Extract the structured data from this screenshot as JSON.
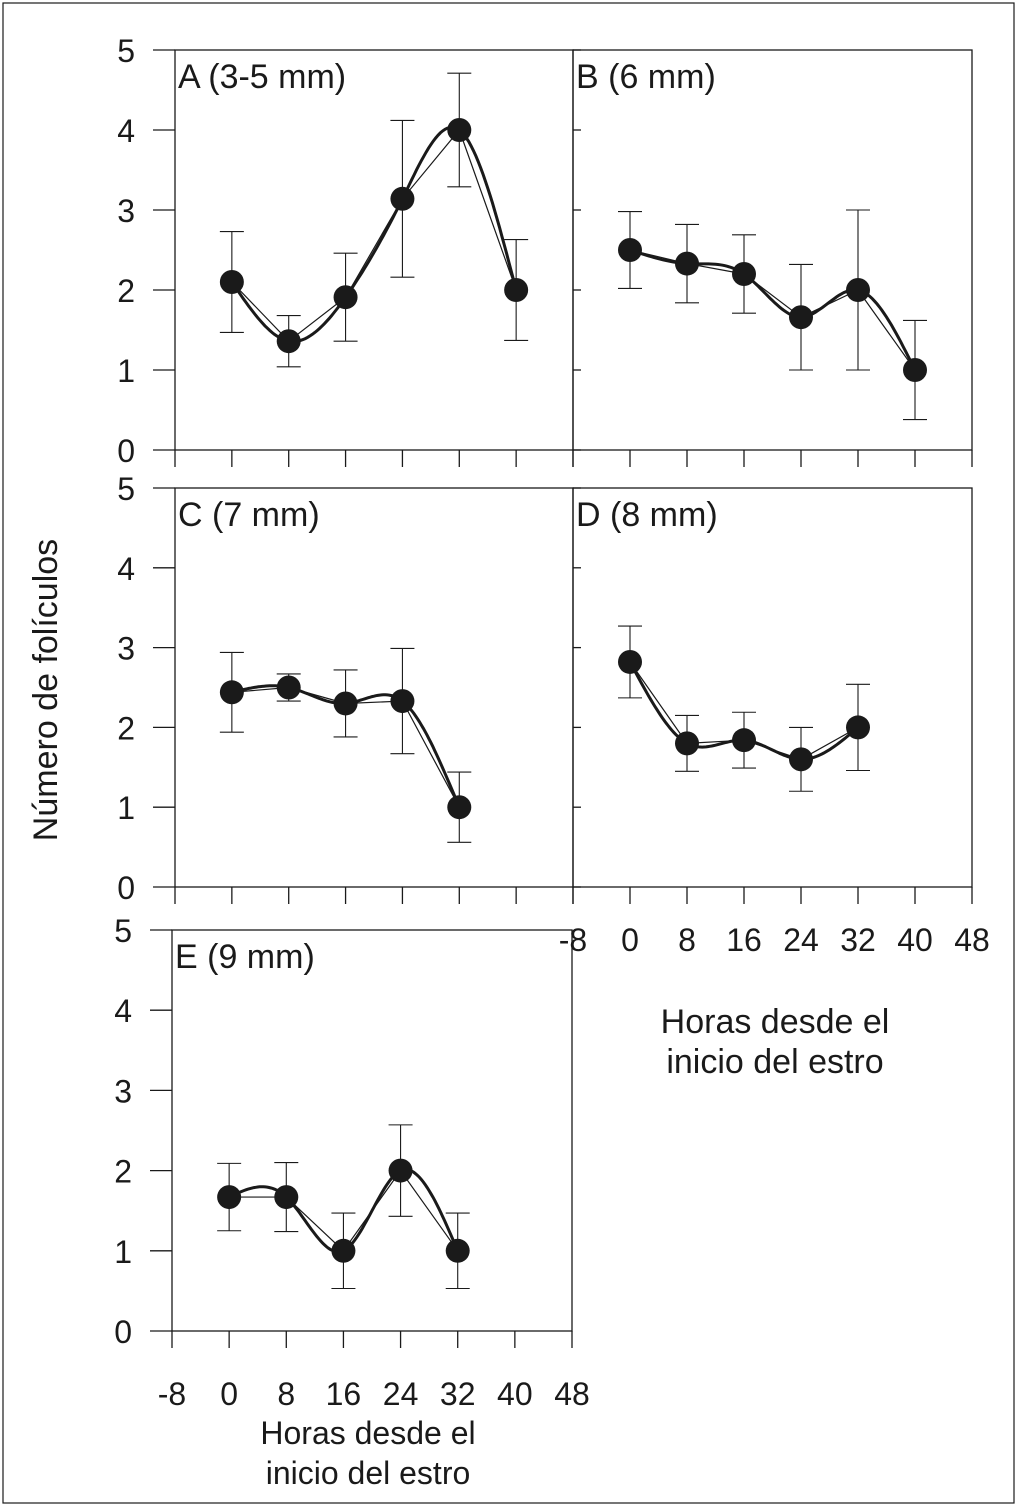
{
  "figure": {
    "ylabel": "Número de folículos",
    "xlabel_line1": "Horas desde el",
    "xlabel_line2": "inicio del estro"
  },
  "chart_data": [
    {
      "type": "scatter",
      "panel": "A",
      "title": "A (3-5 mm)",
      "x": [
        0,
        8,
        16,
        24,
        32,
        40
      ],
      "y": [
        2.1,
        1.36,
        1.91,
        3.14,
        4.0,
        2.0
      ],
      "error": [
        0.63,
        0.32,
        0.55,
        0.98,
        0.71,
        0.63
      ],
      "fit_curve": true,
      "xlim": [
        -8,
        48
      ],
      "ylim": [
        0,
        5
      ],
      "xticks": [
        -8,
        0,
        8,
        16,
        24,
        32,
        40,
        48
      ],
      "yticks": [
        0,
        1,
        2,
        3,
        4,
        5
      ]
    },
    {
      "type": "scatter",
      "panel": "B",
      "title": "B (6 mm)",
      "x": [
        0,
        8,
        16,
        24,
        32,
        40
      ],
      "y": [
        2.5,
        2.33,
        2.2,
        1.66,
        2.0,
        1.0
      ],
      "error": [
        0.48,
        0.49,
        0.49,
        0.66,
        1.0,
        0.62
      ],
      "fit_curve": true,
      "xlim": [
        -8,
        48
      ],
      "ylim": [
        0,
        5
      ],
      "xticks": [
        -8,
        0,
        8,
        16,
        24,
        32,
        40,
        48
      ],
      "yticks": [
        0,
        1,
        2,
        3,
        4,
        5
      ]
    },
    {
      "type": "scatter",
      "panel": "C",
      "title": "C (7 mm)",
      "x": [
        0,
        8,
        16,
        24,
        32
      ],
      "y": [
        2.44,
        2.5,
        2.3,
        2.33,
        1.0
      ],
      "error": [
        0.5,
        0.17,
        0.42,
        0.66,
        0.44
      ],
      "fit_curve": true,
      "xlim": [
        -8,
        48
      ],
      "ylim": [
        0,
        5
      ],
      "xticks": [
        -8,
        0,
        8,
        16,
        24,
        32,
        40,
        48
      ],
      "yticks": [
        0,
        1,
        2,
        3,
        4,
        5
      ]
    },
    {
      "type": "scatter",
      "panel": "D",
      "title": "D (8 mm)",
      "x": [
        0,
        8,
        16,
        24,
        32
      ],
      "y": [
        2.82,
        1.8,
        1.84,
        1.6,
        2.0
      ],
      "error": [
        0.45,
        0.35,
        0.35,
        0.4,
        0.54
      ],
      "fit_curve": true,
      "xlim": [
        -8,
        48
      ],
      "ylim": [
        0,
        5
      ],
      "xticks": [
        -8,
        0,
        8,
        16,
        24,
        32,
        40,
        48
      ],
      "yticks": [
        0,
        1,
        2,
        3,
        4,
        5
      ]
    },
    {
      "type": "scatter",
      "panel": "E",
      "title": "E (9 mm)",
      "x": [
        0,
        8,
        16,
        24,
        32
      ],
      "y": [
        1.67,
        1.67,
        1.0,
        2.0,
        1.0
      ],
      "error": [
        0.42,
        0.43,
        0.47,
        0.57,
        0.47
      ],
      "fit_curve": true,
      "xlim": [
        -8,
        48
      ],
      "ylim": [
        0,
        5
      ],
      "xticks": [
        -8,
        0,
        8,
        16,
        24,
        32,
        40,
        48
      ],
      "yticks": [
        0,
        1,
        2,
        3,
        4,
        5
      ]
    }
  ]
}
